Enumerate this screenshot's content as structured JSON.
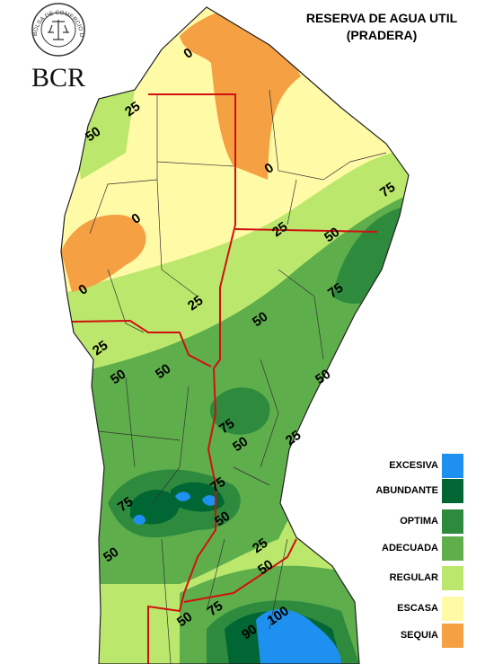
{
  "logo": {
    "initials": "BCR",
    "ring_text": "BOLSA DE COMERCIO DE ROSARIO"
  },
  "title": [
    "RESERVA DE AGUA UTIL",
    "(PRADERA)"
  ],
  "legend": [
    {
      "label": "EXCESIVA",
      "color": "#1e90f0"
    },
    {
      "label": "ABUNDANTE",
      "color": "#006633"
    },
    {
      "label": "OPTIMA",
      "color": "#2e8b3e"
    },
    {
      "label": "ADECUADA",
      "color": "#5fae4c"
    },
    {
      "label": "REGULAR",
      "color": "#bbe86c"
    },
    {
      "label": "ESCASA",
      "color": "#fffaa6"
    },
    {
      "label": "SEQUIA",
      "color": "#f5a043"
    }
  ],
  "contour_labels": [
    "0",
    "25",
    "50",
    "0",
    "75",
    "0",
    "25",
    "50",
    "0",
    "75",
    "25",
    "50",
    "25",
    "50",
    "50",
    "50",
    "75",
    "50",
    "25",
    "75",
    "75",
    "50",
    "25",
    "50",
    "50",
    "75",
    "100",
    "50",
    "90"
  ]
}
